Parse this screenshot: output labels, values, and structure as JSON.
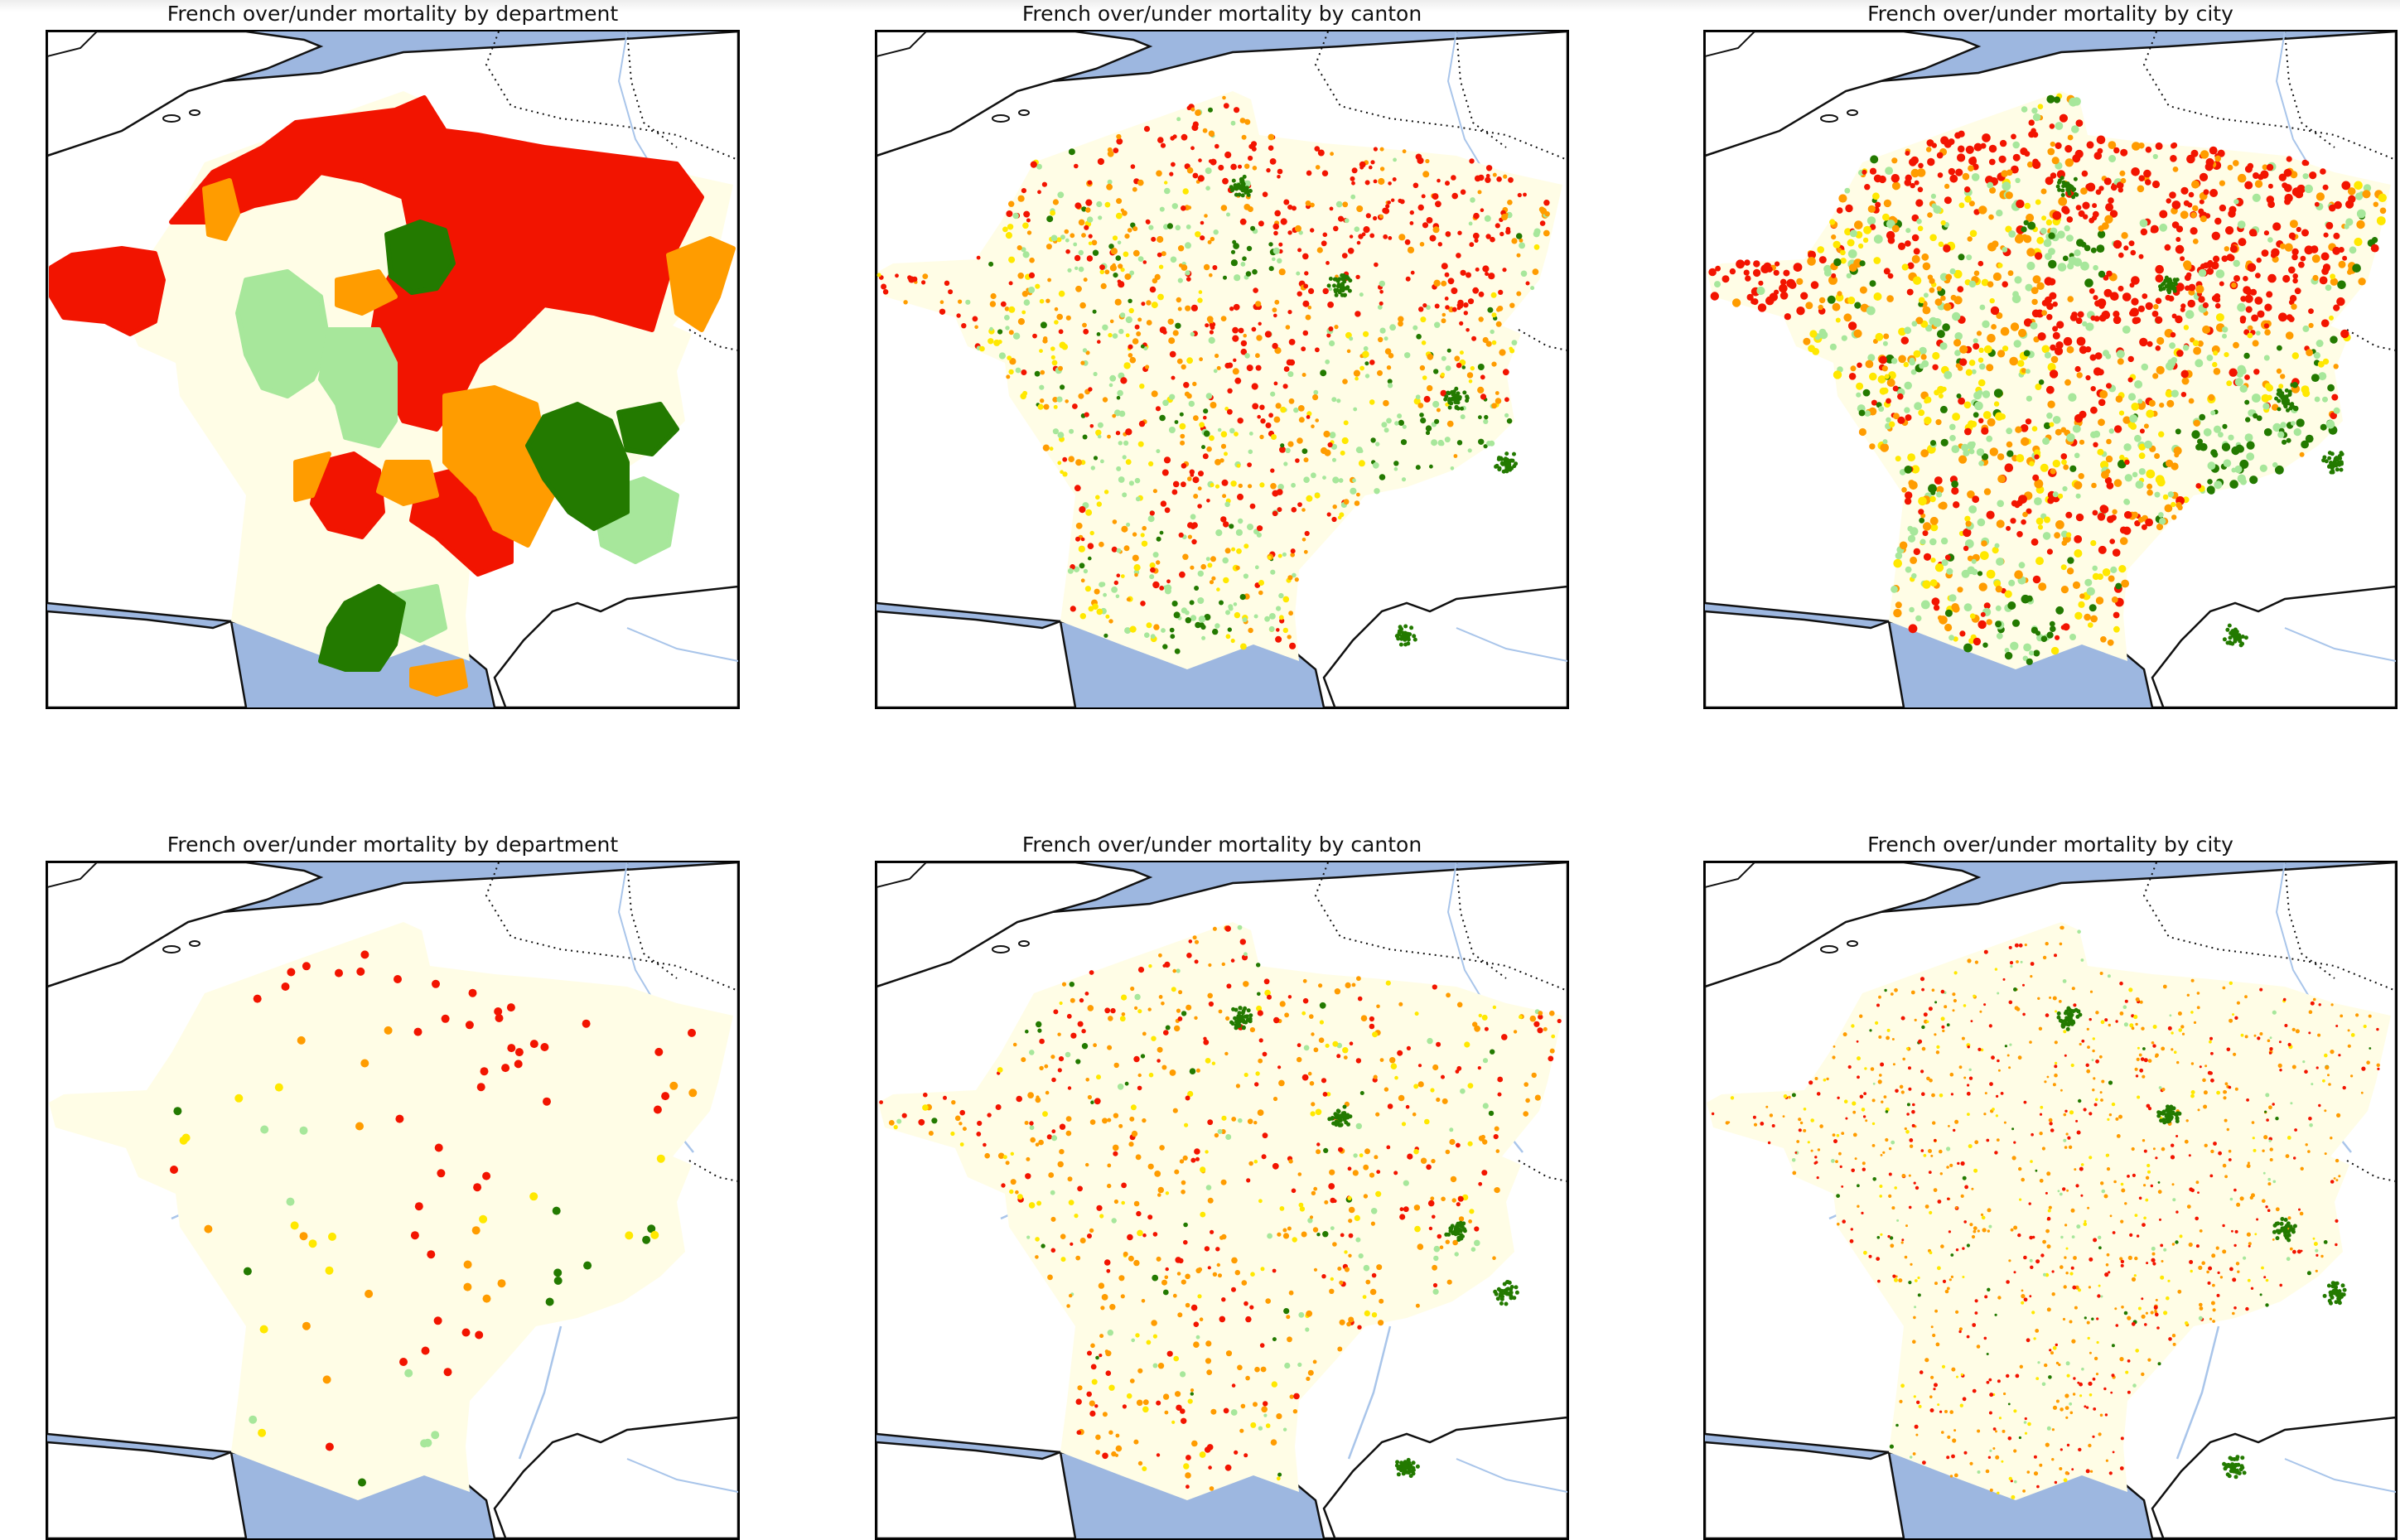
{
  "colors": {
    "sea": "#9db7e0",
    "land": "#ffffff",
    "france": "#fffde6",
    "river": "#a9c5ea",
    "border": "#111111",
    "coast": "#111111",
    "categories": {
      "strong_over": "#f21400",
      "over": "#ff9c00",
      "slight_over": "#ffe800",
      "slight_under": "#a7e79b",
      "strong_under": "#237a00"
    }
  },
  "panels": [
    {
      "title": "French over/under mortality by department",
      "level": "department",
      "style": "fill"
    },
    {
      "title": "French over/under mortality by canton",
      "level": "canton",
      "style": "fill"
    },
    {
      "title": "French over/under mortality by city",
      "level": "city",
      "style": "fill"
    },
    {
      "title": "French over/under mortality by department",
      "level": "department",
      "style": "points"
    },
    {
      "title": "French over/under mortality by canton",
      "level": "canton",
      "style": "points"
    },
    {
      "title": "French over/under mortality by city",
      "level": "city",
      "style": "points"
    }
  ]
}
